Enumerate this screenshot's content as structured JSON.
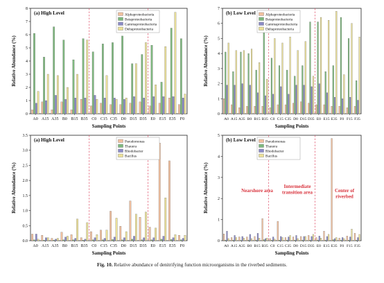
{
  "figure": {
    "caption_label": "Fig. 10.",
    "caption_text": "Relative abundance of denitrifying function microorganisms in the riverbed sediments."
  },
  "chart_data": [
    {
      "type": "bar",
      "title": "(a) High Level",
      "xlabel": "Sampling Points",
      "ylabel": "Relative Abundance (%)",
      "ylim": [
        0,
        8
      ],
      "yticks": [
        0,
        1,
        2,
        3,
        4,
        5,
        6,
        7,
        8
      ],
      "categories": [
        "A0",
        "A15",
        "A35",
        "B0",
        "B15",
        "B35",
        "C0",
        "C15",
        "C35",
        "D0",
        "D15",
        "D35",
        "E0",
        "E15",
        "E35",
        "F0"
      ],
      "tick_labels": [
        "A0",
        "A15",
        "A35",
        "B0",
        "B15",
        "B35",
        "C0",
        "C15",
        "C35",
        "D0",
        "D15",
        "D35",
        "E0",
        "E15",
        "E35",
        "F0"
      ],
      "dividers_after": [
        5,
        11
      ],
      "legend": "top-right",
      "series": [
        {
          "name": "Alphaproteobacteria",
          "color": "#f2c1a0",
          "values": [
            0.3,
            0.9,
            0.3,
            0.9,
            0.3,
            1.1,
            0.6,
            0.8,
            0.7,
            0.7,
            0.8,
            0.9,
            0.6,
            0.8,
            1.2,
            0.7
          ]
        },
        {
          "name": "Betaproteobacteria",
          "color": "#7fb97f",
          "values": [
            6.1,
            4.3,
            6.6,
            5.6,
            4.1,
            5.7,
            4.7,
            5.3,
            5.4,
            5.9,
            3.8,
            4.5,
            5.2,
            2.4,
            6.5,
            5.7
          ]
        },
        {
          "name": "Gammaproteobacteria",
          "color": "#8c8cc8",
          "values": [
            0.8,
            1.0,
            1.4,
            1.1,
            1.2,
            1.2,
            1.4,
            1.2,
            1.2,
            1.1,
            1.3,
            1.2,
            1.3,
            1.3,
            1.3,
            1.2
          ]
        },
        {
          "name": "Deltaproteobacteria",
          "color": "#ece19a",
          "values": [
            1.7,
            3.0,
            2.9,
            2.0,
            3.0,
            5.6,
            1.1,
            2.9,
            1.1,
            1.2,
            3.8,
            5.4,
            2.2,
            5.1,
            7.7,
            1.5
          ]
        }
      ]
    },
    {
      "type": "bar",
      "title": "(b) Low Level",
      "xlabel": "Sampling Points",
      "ylabel": "Relative Abundance (%)",
      "ylim": [
        0,
        7
      ],
      "yticks": [
        0,
        1,
        2,
        3,
        4,
        5,
        6,
        7
      ],
      "categories": [
        "A0",
        "A15",
        "A35",
        "B0",
        "B15",
        "B35",
        "C0",
        "C15",
        "C35",
        "D0",
        "D15",
        "D35",
        "E0",
        "E15",
        "E35",
        "F0",
        "F15",
        "F35"
      ],
      "tick_labels": [
        "A0",
        "A15",
        "A35",
        "B0",
        "B15",
        "B35",
        "C0",
        "C15",
        "C35",
        "D0",
        "D15",
        "D35",
        "E0",
        "E15",
        "E35",
        "F0",
        "F15",
        "F35"
      ],
      "dividers_after": [
        5,
        11
      ],
      "legend": "top-left",
      "series": [
        {
          "name": "Alphaproteobacteria",
          "color": "#f2c1a0",
          "values": [
            1.0,
            0.6,
            0.4,
            0.5,
            0.5,
            0.5,
            0.4,
            0.6,
            0.6,
            0.7,
            0.8,
            0.7,
            0.6,
            0.6,
            0.5,
            0.5,
            0.4,
            0.5
          ]
        },
        {
          "name": "Betaproteobacteria",
          "color": "#7fb97f",
          "values": [
            4.1,
            2.8,
            4.1,
            4.0,
            2.9,
            5.4,
            3.7,
            3.2,
            2.9,
            2.5,
            3.2,
            6.1,
            6.1,
            2.8,
            3.2,
            6.4,
            5.0,
            2.2
          ]
        },
        {
          "name": "Gammaproteobacteria",
          "color": "#8c8cc8",
          "values": [
            1.9,
            1.9,
            2.0,
            1.9,
            1.4,
            1.2,
            1.3,
            1.8,
            1.3,
            1.9,
            1.9,
            1.8,
            2.0,
            1.4,
            1.1,
            1.0,
            1.1,
            0.9
          ]
        },
        {
          "name": "Deltaproteobacteria",
          "color": "#ece19a",
          "values": [
            4.7,
            4.2,
            4.2,
            4.3,
            3.4,
            2.3,
            5.0,
            4.7,
            5.1,
            4.2,
            4.8,
            2.5,
            6.4,
            6.2,
            6.8,
            2.6,
            6.0,
            5.1
          ]
        }
      ]
    },
    {
      "type": "bar",
      "title": "(a) High Level",
      "xlabel": "Sampling Points",
      "ylabel": "Relative Abundance (%)",
      "ylim": [
        0,
        3.5
      ],
      "yticks": [
        0,
        0.5,
        1.0,
        1.5,
        2.0,
        2.5,
        3.0,
        3.5
      ],
      "categories": [
        "A0",
        "A15",
        "A35",
        "B0",
        "B15",
        "B35",
        "C0",
        "C15",
        "C35",
        "D0",
        "D15",
        "D35",
        "E0",
        "E15",
        "E35",
        "F0"
      ],
      "tick_labels": [
        "A0",
        "A15",
        "A35",
        "B0",
        "B15",
        "B35",
        "C0",
        "C15",
        "C35",
        "D0",
        "D15",
        "D35",
        "E0",
        "E15",
        "E35",
        "F0"
      ],
      "dividers_after": [
        5,
        11
      ],
      "legend": "top-right",
      "series": [
        {
          "name": "Pseudomonas",
          "color": "#f2c1a0",
          "values": [
            0.22,
            0.18,
            0.08,
            0.28,
            0.2,
            0.1,
            0.3,
            0.35,
            0.98,
            0.48,
            1.32,
            0.78,
            0.45,
            3.24,
            2.65,
            0.18
          ]
        },
        {
          "name": "Thauera",
          "color": "#7fb97f",
          "values": [
            0.03,
            0.02,
            0.02,
            0.03,
            0.03,
            0.02,
            0.03,
            0.03,
            0.04,
            0.03,
            0.05,
            0.03,
            0.03,
            0.05,
            0.04,
            0.03
          ]
        },
        {
          "name": "Rhodobacter",
          "color": "#8c8cc8",
          "values": [
            0.22,
            0.1,
            0.05,
            0.12,
            0.08,
            0.05,
            0.1,
            0.08,
            0.12,
            0.1,
            0.15,
            0.1,
            0.1,
            0.15,
            0.1,
            0.08
          ]
        },
        {
          "name": "Bacillus",
          "color": "#ece19a",
          "values": [
            0.05,
            0.1,
            0.08,
            0.15,
            0.72,
            0.6,
            0.2,
            0.35,
            0.75,
            0.3,
            0.88,
            0.95,
            0.42,
            1.42,
            0.2,
            0.18
          ]
        }
      ]
    },
    {
      "type": "bar",
      "title": "(b) Low Level",
      "xlabel": "Sampling Points",
      "ylabel": "Relative Abundance (%)",
      "ylim": [
        0,
        5
      ],
      "yticks": [
        0,
        1,
        2,
        3,
        4,
        5
      ],
      "categories": [
        "A0",
        "A15",
        "A35",
        "B0",
        "B15",
        "B35",
        "C0",
        "C15",
        "C35",
        "D0",
        "D15",
        "D35",
        "E0",
        "E15",
        "E35",
        "F0",
        "F15",
        "F35"
      ],
      "tick_labels": [
        "A0",
        "A15",
        "A35",
        "B0",
        "B15",
        "B35",
        "C0",
        "C15",
        "C35",
        "D0",
        "D15",
        "D35",
        "E0",
        "E15",
        "E35",
        "F0",
        "F15",
        "F35"
      ],
      "dividers_after": [
        5,
        11
      ],
      "legend": "top-left",
      "annotations": [
        "Nearshore area",
        "Intermediate transition area",
        "Center of riverbed"
      ],
      "series": [
        {
          "name": "Pseudomonas",
          "color": "#f2c1a0",
          "values": [
            0.32,
            0.15,
            0.18,
            0.18,
            0.2,
            1.05,
            0.1,
            0.92,
            0.15,
            0.18,
            0.2,
            0.25,
            0.15,
            0.45,
            4.85,
            0.12,
            0.22,
            0.35
          ]
        },
        {
          "name": "Thauera",
          "color": "#7fb97f",
          "values": [
            0.03,
            0.03,
            0.02,
            0.03,
            0.03,
            0.05,
            0.03,
            0.03,
            0.03,
            0.03,
            0.03,
            0.03,
            0.03,
            0.03,
            0.05,
            0.03,
            0.03,
            0.03
          ]
        },
        {
          "name": "Rhodobacter",
          "color": "#8c8cc8",
          "values": [
            0.45,
            0.25,
            0.2,
            0.3,
            0.35,
            0.1,
            0.18,
            0.2,
            0.18,
            0.25,
            0.2,
            0.2,
            0.22,
            0.2,
            0.1,
            0.15,
            0.18,
            0.15
          ]
        },
        {
          "name": "Bacillus",
          "color": "#ece19a",
          "values": [
            0.1,
            0.15,
            0.12,
            0.1,
            0.12,
            0.12,
            0.08,
            0.15,
            0.25,
            0.1,
            0.2,
            0.3,
            0.12,
            0.3,
            0.15,
            0.1,
            0.55,
            0.3
          ]
        }
      ]
    }
  ]
}
